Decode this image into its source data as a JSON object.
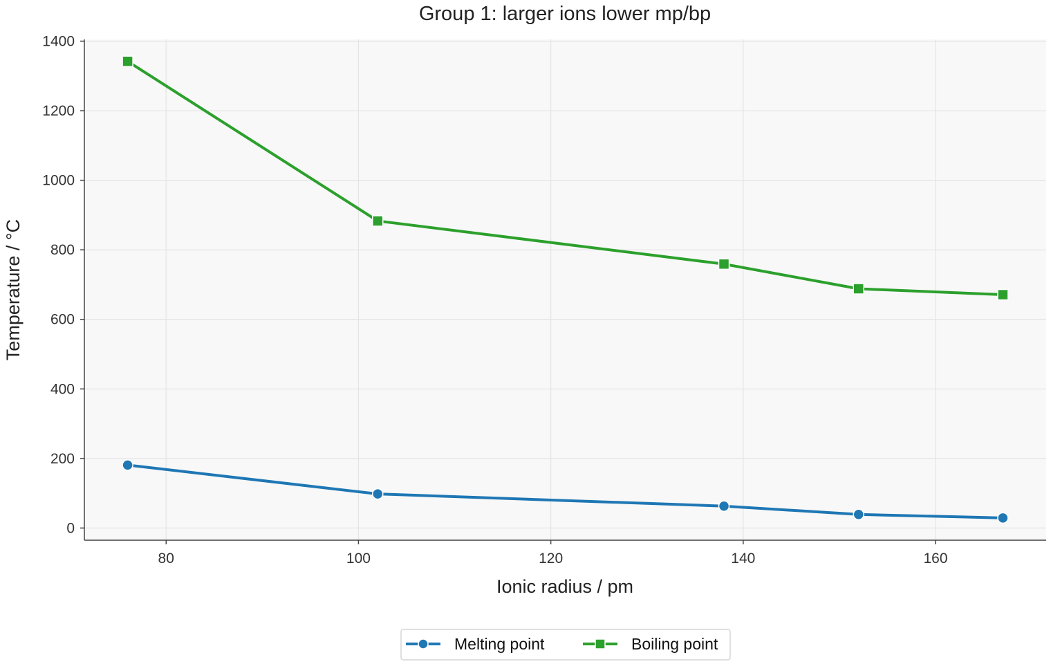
{
  "chart_data": {
    "type": "line",
    "title": "Group 1: larger ions lower mp/bp",
    "xlabel": "Ionic radius / pm",
    "ylabel": "Temperature / °C",
    "x": [
      76,
      102,
      138,
      152,
      167
    ],
    "xlim": [
      71.5,
      171.5
    ],
    "ylim": [
      -35,
      1405
    ],
    "xticks": [
      80,
      100,
      120,
      140,
      160
    ],
    "yticks": [
      0,
      200,
      400,
      600,
      800,
      1000,
      1200,
      1400
    ],
    "grid": true,
    "legend_position": "bottom-center",
    "series": [
      {
        "name": "Melting point",
        "color": "#1f77b4",
        "marker": "circle",
        "values": [
          181,
          98,
          63,
          39,
          29
        ]
      },
      {
        "name": "Boiling point",
        "color": "#2ca02c",
        "marker": "square",
        "values": [
          1342,
          883,
          759,
          688,
          671
        ]
      }
    ]
  }
}
